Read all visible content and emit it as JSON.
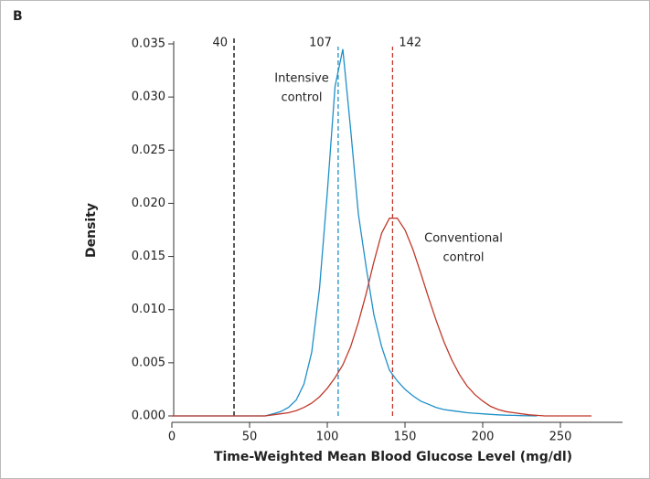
{
  "chart_data": {
    "type": "line",
    "panel_label": "B",
    "xlabel": "Time-Weighted Mean Blood Glucose Level (mg/dl)",
    "ylabel": "Density",
    "x": [
      0,
      60,
      65,
      70,
      75,
      80,
      85,
      90,
      95,
      100,
      105,
      110,
      115,
      120,
      125,
      130,
      135,
      140,
      145,
      150,
      155,
      160,
      165,
      170,
      175,
      180,
      185,
      190,
      195,
      200,
      205,
      210,
      215,
      220,
      225,
      230,
      235,
      240,
      245,
      250,
      255,
      260,
      265,
      270
    ],
    "series": [
      {
        "name": "Intensive control",
        "color": "#1f8fc8",
        "values": [
          0,
          0,
          0.0002,
          0.0004,
          0.0008,
          0.0015,
          0.003,
          0.006,
          0.012,
          0.021,
          0.031,
          0.0345,
          0.027,
          0.019,
          0.014,
          0.0095,
          0.0065,
          0.0043,
          0.0033,
          0.0025,
          0.0019,
          0.0014,
          0.0011,
          0.0008,
          0.0006,
          0.0005,
          0.0004,
          0.0003,
          0.00025,
          0.0002,
          0.00015,
          0.0001,
          7e-05,
          5e-05,
          3e-05,
          2e-05,
          0,
          null,
          null,
          null,
          null,
          null,
          null,
          null
        ]
      },
      {
        "name": "Conventional control",
        "color": "#c0392b",
        "values": [
          0,
          0,
          0.0001,
          0.0002,
          0.0003,
          0.0005,
          0.0008,
          0.0012,
          0.0018,
          0.0026,
          0.0036,
          0.0048,
          0.0065,
          0.0088,
          0.0115,
          0.0145,
          0.0172,
          0.0186,
          0.0186,
          0.0175,
          0.0157,
          0.0135,
          0.0112,
          0.009,
          0.007,
          0.0053,
          0.0039,
          0.0028,
          0.002,
          0.0014,
          0.0009,
          0.0006,
          0.0004,
          0.0003,
          0.0002,
          0.0001,
          5e-05,
          0,
          0,
          0,
          0,
          0,
          0,
          0
        ]
      }
    ],
    "reference_lines": [
      {
        "x": 40,
        "color": "#000000"
      },
      {
        "x": 107,
        "color": "#1f8fc8"
      },
      {
        "x": 142,
        "color": "#c0392b"
      }
    ],
    "annotations": [
      {
        "lines": [
          "Intensive",
          "control"
        ]
      },
      {
        "lines": [
          "Conventional",
          "control"
        ]
      }
    ],
    "xlim": [
      0,
      290
    ],
    "ylim": [
      0,
      0.035
    ],
    "xticks": [
      0,
      50,
      100,
      150,
      200,
      250
    ],
    "yticks": [
      {
        "value": 0,
        "label": "0.000"
      },
      {
        "value": 0.005,
        "label": "0.005"
      },
      {
        "value": 0.01,
        "label": "0.010"
      },
      {
        "value": 0.015,
        "label": "0.015"
      },
      {
        "value": 0.02,
        "label": "0.020"
      },
      {
        "value": 0.025,
        "label": "0.025"
      },
      {
        "value": 0.03,
        "label": "0.030"
      },
      {
        "value": 0.035,
        "label": "0.035"
      }
    ]
  }
}
